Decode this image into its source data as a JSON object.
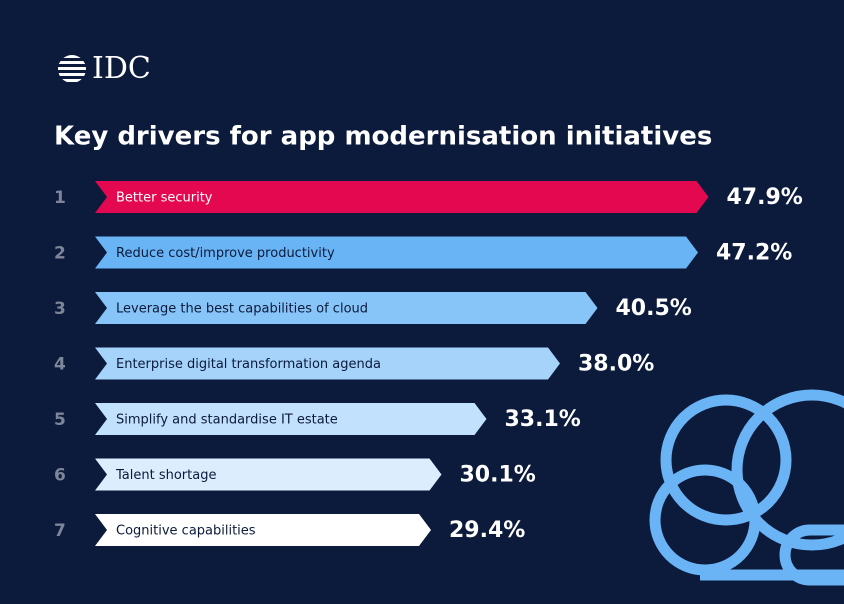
{
  "chart_data": {
    "type": "bar",
    "logo": "IDC",
    "title": "Key drivers for app modernisation initiatives",
    "ranks": [
      1,
      2,
      3,
      4,
      5,
      6,
      7
    ],
    "categories": [
      "Better security",
      "Reduce cost/improve productivity",
      "Leverage the best capabilities of cloud",
      "Enterprise digital transformation agenda",
      "Simplify and standardise IT estate",
      "Talent shortage",
      "Cognitive capabilities"
    ],
    "values": [
      47.9,
      47.2,
      40.5,
      38.0,
      33.1,
      30.1,
      29.4
    ],
    "value_labels": [
      "47.9%",
      "47.2%",
      "40.5%",
      "38.0%",
      "33.1%",
      "30.1%",
      "29.4%"
    ],
    "colors": [
      "#e3084f",
      "#69b4f4",
      "#87c4f7",
      "#a5d3fa",
      "#c2e1fc",
      "#dcedfd",
      "#ffffff"
    ]
  }
}
